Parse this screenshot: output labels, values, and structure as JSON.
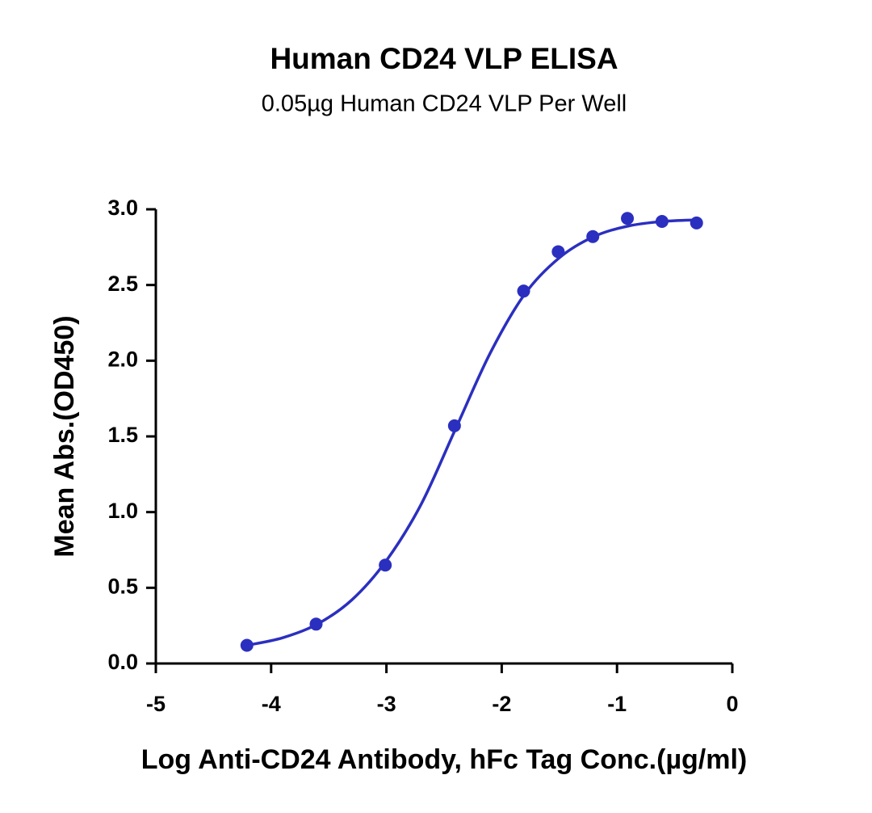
{
  "chart_data": {
    "type": "scatter",
    "title": "Human CD24 VLP ELISA",
    "subtitle": "0.05µg Human CD24 VLP Per Well",
    "x_label": "Log Anti-CD24 Antibody, hFc Tag Conc.(µg/ml)",
    "y_label": "Mean Abs.(OD450)",
    "color": "#2b2fbf",
    "x": [
      -4.21,
      -3.61,
      -3.01,
      -2.41,
      -1.81,
      -1.51,
      -1.21,
      -0.91,
      -0.61,
      -0.31
    ],
    "values": [
      0.12,
      0.26,
      0.65,
      1.57,
      2.46,
      2.72,
      2.82,
      2.94,
      2.92,
      2.91
    ],
    "fit": {
      "x": [
        -4.21,
        -3.9,
        -3.6,
        -3.3,
        -3.0,
        -2.7,
        -2.4,
        -2.1,
        -1.8,
        -1.5,
        -1.2,
        -0.9,
        -0.6,
        -0.31
      ],
      "values": [
        0.12,
        0.17,
        0.26,
        0.42,
        0.68,
        1.05,
        1.55,
        2.05,
        2.44,
        2.68,
        2.82,
        2.89,
        2.92,
        2.93
      ]
    },
    "xlim": [
      -5,
      0
    ],
    "xticks": [
      -5,
      -4,
      -3,
      -2,
      -1,
      0
    ],
    "ylim": [
      0,
      3
    ],
    "yticks": [
      {
        "value": 0,
        "label": "0.0"
      },
      0.5,
      {
        "value": 1,
        "label": "1.0"
      },
      1.5,
      {
        "value": 2,
        "label": "2.0"
      },
      2.5,
      {
        "value": 3,
        "label": "3.0"
      }
    ],
    "grid": false
  }
}
